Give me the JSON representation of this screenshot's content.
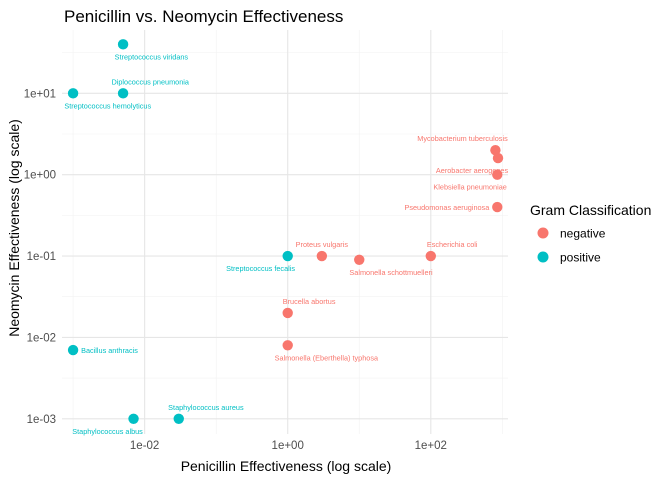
{
  "chart_data": {
    "type": "scatter",
    "title": "Penicillin vs. Neomycin Effectiveness",
    "xlabel": "Penicillin Effectiveness (log scale)",
    "ylabel": "Neomycin Effectiveness (log scale)",
    "x_scale": "log10",
    "y_scale": "log10",
    "xlim": [
      0.0007,
      1200
    ],
    "ylim": [
      0.00065,
      60
    ],
    "x_ticks": [
      {
        "value": 0.01,
        "label": "1e-02"
      },
      {
        "value": 1,
        "label": "1e+00"
      },
      {
        "value": 100,
        "label": "1e+02"
      }
    ],
    "y_ticks": [
      {
        "value": 0.001,
        "label": "1e-03"
      },
      {
        "value": 0.01,
        "label": "1e-02"
      },
      {
        "value": 0.1,
        "label": "1e-01"
      },
      {
        "value": 1,
        "label": "1e+00"
      },
      {
        "value": 10,
        "label": "1e+01"
      }
    ],
    "grid": true,
    "legend": {
      "title": "Gram Classification",
      "position": "right",
      "entries": [
        {
          "name": "negative",
          "color": "#F8766D"
        },
        {
          "name": "positive",
          "color": "#00BFC4"
        }
      ]
    },
    "series": [
      {
        "name": "negative",
        "color": "#F8766D",
        "points": [
          {
            "label": "Mycobacterium tuberculosis",
            "x": 800,
            "y": 2,
            "label_pos": "above-left"
          },
          {
            "label": "Aerobacter aerogenes",
            "x": 870,
            "y": 1.6,
            "label_pos": "below-left"
          },
          {
            "label": "Klebsiella pneumoniae",
            "x": 850,
            "y": 1.0,
            "label_pos": "below-left"
          },
          {
            "label": "Pseudomonas aeruginosa",
            "x": 850,
            "y": 0.4,
            "label_pos": "left"
          },
          {
            "label": "Proteus vulgaris",
            "x": 3,
            "y": 0.1,
            "label_pos": "above"
          },
          {
            "label": "Salmonella schottmuelleri",
            "x": 10,
            "y": 0.09,
            "label_pos": "below-right"
          },
          {
            "label": "Escherichia coli",
            "x": 100,
            "y": 0.1,
            "label_pos": "above-right"
          },
          {
            "label": "Brucella abortus",
            "x": 1,
            "y": 0.02,
            "label_pos": "above-right"
          },
          {
            "label": "Salmonella (Eberthella) typhosa",
            "x": 1,
            "y": 0.008,
            "label_pos": "below-right"
          }
        ]
      },
      {
        "name": "positive",
        "color": "#00BFC4",
        "points": [
          {
            "label": "Streptococcus viridans",
            "x": 0.005,
            "y": 40,
            "label_pos": "below-right"
          },
          {
            "label": "Diplococcus pneumonia",
            "x": 0.005,
            "y": 10,
            "label_pos": "above-right"
          },
          {
            "label": "Streptococcus hemolyticus",
            "x": 0.001,
            "y": 10,
            "label_pos": "below-right"
          },
          {
            "label": "Streptococcus fecalis",
            "x": 1,
            "y": 0.1,
            "label_pos": "below-left"
          },
          {
            "label": "Bacillus anthracis",
            "x": 0.001,
            "y": 0.007,
            "label_pos": "right"
          },
          {
            "label": "Staphylococcus albus",
            "x": 0.007,
            "y": 0.001,
            "label_pos": "below-left"
          },
          {
            "label": "Staphylococcus aureus",
            "x": 0.03,
            "y": 0.001,
            "label_pos": "above-right"
          }
        ]
      }
    ]
  }
}
